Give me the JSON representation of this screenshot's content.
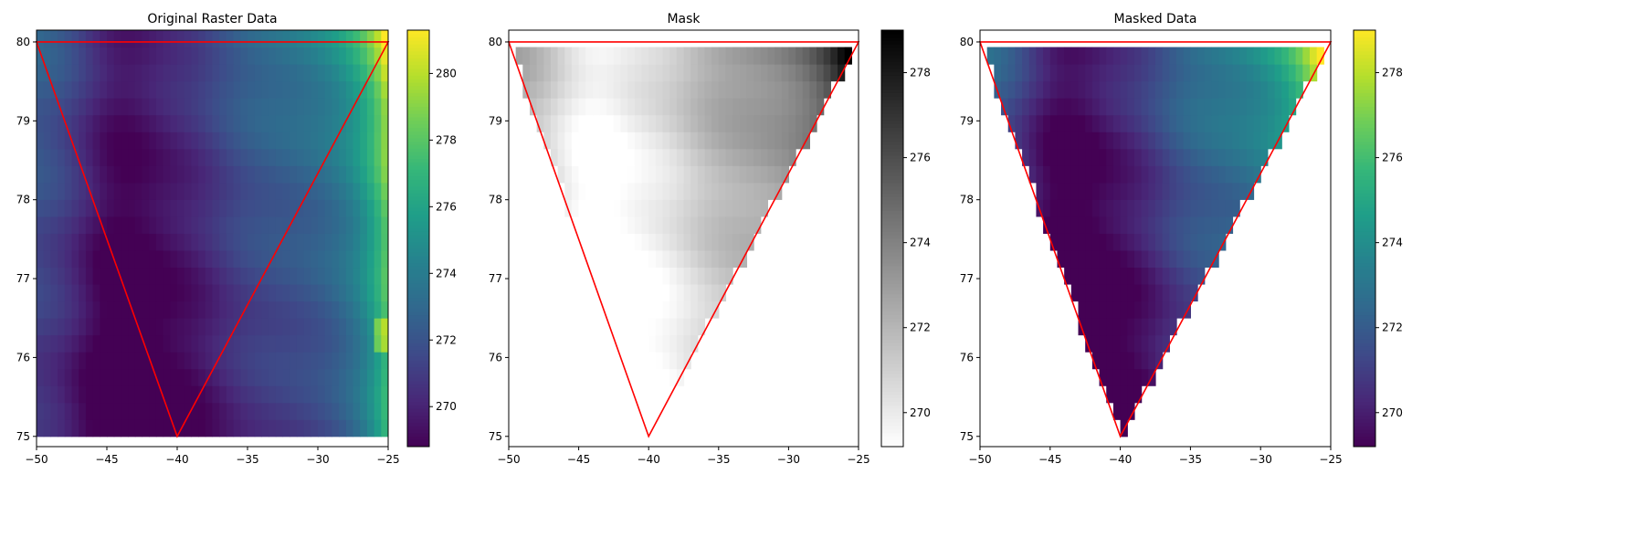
{
  "chart_data": [
    {
      "type": "heatmap",
      "title": "Original Raster Data",
      "xlim": [
        -50,
        -25
      ],
      "ylim": [
        75,
        80
      ],
      "xticks": [
        -50,
        -45,
        -40,
        -35,
        -30,
        -25
      ],
      "yticks": [
        75,
        76,
        77,
        78,
        79,
        80
      ],
      "colormap": "viridis",
      "colorbar": {
        "min": 268.8,
        "max": 281.3,
        "ticks": [
          270,
          272,
          274,
          276,
          278,
          280
        ]
      },
      "overlay_polygon": {
        "color": "#ff0000",
        "points": [
          [
            -50,
            80
          ],
          [
            -25,
            80
          ],
          [
            -40,
            75
          ]
        ]
      },
      "grid": false
    },
    {
      "type": "heatmap",
      "title": "Mask",
      "xlim": [
        -50,
        -25
      ],
      "ylim": [
        75,
        80
      ],
      "xticks": [
        -50,
        -45,
        -40,
        -35,
        -30,
        -25
      ],
      "yticks": [
        75,
        76,
        77,
        78,
        79,
        80
      ],
      "colormap": "gray_r",
      "colorbar": {
        "min": 269.2,
        "max": 279.0,
        "ticks": [
          270,
          272,
          274,
          276,
          278
        ]
      },
      "overlay_polygon": {
        "color": "#ff0000",
        "points": [
          [
            -50,
            80
          ],
          [
            -25,
            80
          ],
          [
            -40,
            75
          ]
        ]
      },
      "masked_outside_polygon": true,
      "grid": false
    },
    {
      "type": "heatmap",
      "title": "Masked Data",
      "xlim": [
        -50,
        -25
      ],
      "ylim": [
        75,
        80
      ],
      "xticks": [
        -50,
        -45,
        -40,
        -35,
        -30,
        -25
      ],
      "yticks": [
        75,
        76,
        77,
        78,
        79,
        80
      ],
      "colormap": "viridis",
      "colorbar": {
        "min": 269.2,
        "max": 279.0,
        "ticks": [
          270,
          272,
          274,
          276,
          278
        ]
      },
      "overlay_polygon": {
        "color": "#ff0000",
        "points": [
          [
            -50,
            80
          ],
          [
            -25,
            80
          ],
          [
            -40,
            75
          ]
        ]
      },
      "masked_outside_polygon": true,
      "grid": false
    }
  ],
  "raster": {
    "x_range": [
      -50,
      -25
    ],
    "y_range": [
      75,
      80.15
    ],
    "approx_value_range": [
      268.8,
      281.3
    ]
  }
}
